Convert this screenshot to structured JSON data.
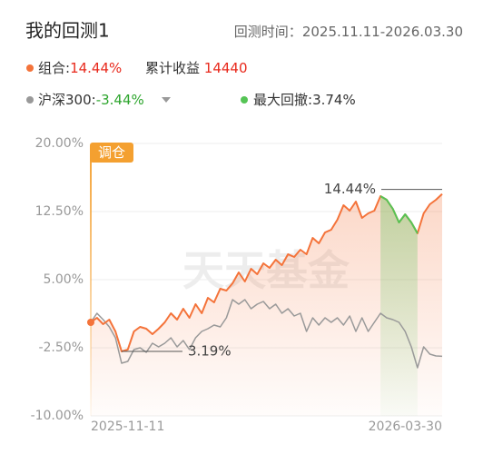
{
  "header": {
    "title": "我的回测1",
    "period_label": "回测时间：",
    "period": "2025.11.11-2026.03.30"
  },
  "chart_data": {
    "type": "line",
    "categories": [
      "2025-11-11",
      null,
      null,
      null,
      null,
      null,
      null,
      null,
      null,
      null,
      null,
      null,
      null,
      null,
      null,
      null,
      null,
      null,
      null,
      null,
      null,
      null,
      null,
      null,
      null,
      null,
      null,
      null,
      null,
      null,
      null,
      null,
      null,
      null,
      null,
      null,
      null,
      null,
      null,
      null,
      null,
      null,
      null,
      null,
      null,
      null,
      null,
      null,
      null,
      null,
      null,
      null,
      null,
      null,
      null,
      null,
      null,
      "2026-03-30"
    ],
    "separator": ":",
    "series": [
      {
        "name": "组合",
        "color": "#f4733a",
        "return": 14.44,
        "return_label": "14.44%",
        "return_color": "#e8291c",
        "values": [
          0.3,
          0.8,
          0.1,
          0.6,
          -0.7,
          -2.9,
          -2.7,
          -0.7,
          -0.2,
          -0.4,
          -1.0,
          -0.4,
          0.3,
          1.3,
          0.6,
          1.8,
          0.8,
          2.3,
          1.3,
          3.0,
          2.5,
          4.0,
          3.8,
          4.6,
          5.8,
          4.8,
          6.2,
          5.6,
          6.8,
          6.3,
          7.2,
          6.6,
          7.8,
          7.5,
          8.3,
          7.8,
          9.6,
          9.0,
          10.2,
          10.5,
          11.6,
          13.2,
          12.6,
          13.6,
          11.8,
          12.3,
          12.6,
          14.2,
          13.8,
          12.8,
          11.3,
          12.2,
          11.3,
          10.1,
          12.3,
          13.3,
          13.8,
          14.44
        ]
      },
      {
        "name": "沪深300",
        "color": "#999999",
        "return": -3.44,
        "return_label": "-3.44%",
        "return_color": "#2da52d",
        "values": [
          0.3,
          1.3,
          0.6,
          -0.2,
          -1.4,
          -4.2,
          -4.0,
          -2.7,
          -2.5,
          -3.0,
          -2.0,
          -2.4,
          -2.0,
          -1.4,
          -2.4,
          -1.7,
          -2.7,
          -1.4,
          -0.7,
          -0.4,
          0.0,
          -0.2,
          0.8,
          2.8,
          2.3,
          2.8,
          1.8,
          2.3,
          2.6,
          1.8,
          2.3,
          1.3,
          1.8,
          1.0,
          1.3,
          -0.7,
          0.8,
          0.0,
          0.8,
          0.3,
          0.8,
          0.0,
          1.0,
          -0.7,
          0.8,
          -0.7,
          0.3,
          1.3,
          0.8,
          0.6,
          0.3,
          -0.7,
          -2.4,
          -4.7,
          -2.4,
          -3.2,
          -3.4,
          -3.44
        ]
      }
    ],
    "cumulative_label": "累计收益",
    "cumulative_value": 14440,
    "max_drawdown": {
      "label": "最大回撤",
      "value": 3.74,
      "value_label": "3.74%",
      "color": "#55c455"
    },
    "ylim": [
      -10,
      20
    ],
    "yticks": [
      {
        "value": 20,
        "label": "20.00%"
      },
      {
        "value": 12.5,
        "label": "12.50%"
      },
      {
        "value": 5,
        "label": "5.00%"
      },
      {
        "value": -2.5,
        "label": "-2.50%"
      },
      {
        "value": -10,
        "label": "-10.00%"
      }
    ],
    "grid": true,
    "annotations": [
      {
        "text": "14.44%"
      },
      {
        "text": "3.19%"
      }
    ],
    "rebalance_label": "调仓",
    "watermark": "天天基金"
  }
}
